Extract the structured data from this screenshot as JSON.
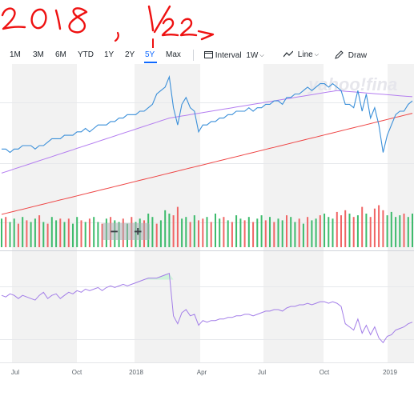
{
  "annotation": {
    "text_year": "2018,",
    "text_date": "1/22",
    "color": "#ee1111"
  },
  "toolbar": {
    "ranges": [
      "1M",
      "3M",
      "6M",
      "YTD",
      "1Y",
      "2Y",
      "5Y",
      "Max"
    ],
    "selected_range": "5Y",
    "interval_label": "Interval",
    "interval_value": "1W",
    "line_label": "Line",
    "draw_label": "Draw",
    "accent_color": "#0f69ff"
  },
  "watermark": "yahoo!fina",
  "zoom": {
    "minus": "−",
    "plus": "+"
  },
  "chart_data": {
    "type": "line",
    "x_tick_labels": [
      "Jul",
      "Oct",
      "2018",
      "Apr",
      "Jul",
      "Oct",
      "2019"
    ],
    "price_series": {
      "color": "#3a8fd9",
      "values": [
        79,
        79,
        78,
        79,
        79,
        80,
        80,
        80,
        79,
        80,
        80,
        81,
        82,
        82,
        82,
        83,
        83,
        83,
        84,
        84,
        85,
        84,
        85,
        86,
        86,
        86,
        87,
        87,
        88,
        88,
        89,
        89,
        89,
        90,
        90,
        91,
        92,
        95,
        96,
        97,
        100,
        91,
        86,
        92,
        94,
        91,
        90,
        84,
        86,
        86,
        87,
        87,
        88,
        88,
        89,
        89,
        90,
        90,
        90,
        91,
        90,
        91,
        91,
        92,
        92,
        93,
        93,
        92,
        94,
        94,
        95,
        95,
        96,
        97,
        96,
        97,
        98,
        98,
        97,
        98,
        97,
        96,
        92,
        92,
        91,
        96,
        90,
        95,
        88,
        91,
        86,
        78,
        83,
        86,
        89,
        90,
        90,
        92,
        93
      ]
    },
    "ma_short": {
      "color": "#b47ef0",
      "values": [
        72,
        72.4,
        72.8,
        73.2,
        73.6,
        74,
        74.4,
        74.8,
        75.2,
        75.6,
        76,
        76.4,
        76.8,
        77.2,
        77.6,
        78,
        78.4,
        78.8,
        79.2,
        79.6,
        80,
        80.4,
        80.8,
        81.2,
        81.6,
        82,
        82.4,
        82.8,
        83.2,
        83.6,
        84,
        84.4,
        84.8,
        85.2,
        85.6,
        86,
        86.4,
        86.8,
        87.2,
        87.6,
        88,
        88.2,
        88.4,
        88.6,
        88.8,
        89,
        89.2,
        89.4,
        89.6,
        89.8,
        90,
        90.2,
        90.4,
        90.6,
        90.8,
        91,
        91.2,
        91.4,
        91.6,
        91.8,
        92,
        92.2,
        92.4,
        92.6,
        92.8,
        93,
        93.2,
        93.4,
        93.6,
        93.8,
        94,
        94.2,
        94.4,
        94.6,
        94.8,
        95,
        95.2,
        95.4,
        95.6,
        95.8,
        96,
        95.9,
        95.8,
        95.7,
        95.6,
        95.5,
        95.4,
        95.3,
        95.2,
        95.1,
        95,
        94.9,
        94.8,
        94.7,
        94.6,
        94.5,
        94.4,
        94.3,
        94.2
      ]
    },
    "ma_long": {
      "color": "#ee4444",
      "values": [
        60,
        60.3,
        60.6,
        60.9,
        61.2,
        61.5,
        61.8,
        62.1,
        62.4,
        62.7,
        63,
        63.3,
        63.6,
        63.9,
        64.2,
        64.5,
        64.8,
        65.1,
        65.4,
        65.7,
        66,
        66.3,
        66.6,
        66.9,
        67.2,
        67.5,
        67.8,
        68.1,
        68.4,
        68.7,
        69,
        69.3,
        69.6,
        69.9,
        70.2,
        70.5,
        70.8,
        71.1,
        71.4,
        71.7,
        72,
        72.3,
        72.6,
        72.9,
        73.2,
        73.5,
        73.8,
        74.1,
        74.4,
        74.7,
        75,
        75.3,
        75.6,
        75.9,
        76.2,
        76.5,
        76.8,
        77.1,
        77.4,
        77.7,
        78,
        78.3,
        78.6,
        78.9,
        79.2,
        79.5,
        79.8,
        80.1,
        80.4,
        80.7,
        81,
        81.3,
        81.6,
        81.9,
        82.2,
        82.5,
        82.8,
        83.1,
        83.4,
        83.7,
        84,
        84.3,
        84.6,
        84.9,
        85.2,
        85.5,
        85.8,
        86.1,
        86.4,
        86.7,
        87,
        87.3,
        87.6,
        87.9,
        88.2,
        88.5,
        88.8,
        89.1,
        89.4
      ]
    },
    "volume": {
      "up_color": "#3dbb6c",
      "down_color": "#f06565",
      "values": [
        34,
        36,
        30,
        34,
        28,
        36,
        32,
        30,
        34,
        38,
        30,
        28,
        36,
        32,
        34,
        30,
        34,
        28,
        36,
        32,
        30,
        34,
        36,
        30,
        28,
        34,
        36,
        32,
        30,
        34,
        28,
        36,
        30,
        34,
        32,
        40,
        36,
        28,
        32,
        44,
        40,
        38,
        48,
        34,
        36,
        30,
        38,
        32,
        34,
        36,
        30,
        40,
        34,
        36,
        32,
        30,
        38,
        34,
        32,
        36,
        30,
        34,
        38,
        32,
        36,
        30,
        34,
        32,
        38,
        36,
        30,
        34,
        28,
        36,
        32,
        34,
        38,
        40,
        36,
        34,
        42,
        38,
        44,
        40,
        36,
        38,
        48,
        40,
        36,
        46,
        50,
        44,
        38,
        42,
        36,
        38,
        40,
        36,
        40
      ],
      "directions": [
        1,
        0,
        1,
        1,
        0,
        1,
        0,
        1,
        1,
        0,
        1,
        0,
        1,
        1,
        0,
        1,
        0,
        1,
        1,
        0,
        1,
        0,
        1,
        1,
        0,
        1,
        0,
        1,
        1,
        0,
        1,
        0,
        1,
        1,
        0,
        1,
        1,
        0,
        1,
        1,
        1,
        0,
        0,
        1,
        1,
        0,
        1,
        0,
        0,
        1,
        0,
        1,
        1,
        0,
        1,
        0,
        1,
        1,
        0,
        1,
        0,
        1,
        1,
        0,
        1,
        0,
        1,
        1,
        0,
        1,
        1,
        0,
        1,
        0,
        1,
        1,
        0,
        1,
        1,
        1,
        0,
        0,
        0,
        1,
        0,
        1,
        0,
        1,
        0,
        0,
        0,
        0,
        1,
        1,
        1,
        1,
        0,
        1,
        1
      ]
    },
    "indicator": {
      "color": "#a37ee8",
      "fill_color": "#c9f3d6",
      "overbought_level": 70,
      "ylim": [
        20,
        85
      ],
      "values": [
        60,
        59,
        61,
        60,
        58,
        60,
        59,
        58,
        57,
        60,
        62,
        58,
        60,
        61,
        58,
        60,
        62,
        61,
        63,
        62,
        64,
        63,
        64,
        65,
        63,
        65,
        66,
        65,
        66,
        67,
        66,
        67,
        68,
        69,
        70,
        71,
        71,
        71,
        72,
        73,
        74,
        47,
        42,
        49,
        51,
        47,
        48,
        41,
        44,
        43,
        44,
        44,
        45,
        45,
        46,
        46,
        47,
        47,
        48,
        48,
        47,
        48,
        49,
        50,
        50,
        51,
        51,
        50,
        52,
        53,
        53,
        54,
        54,
        55,
        54,
        55,
        56,
        56,
        55,
        56,
        55,
        53,
        42,
        40,
        38,
        45,
        36,
        41,
        35,
        40,
        33,
        30,
        34,
        35,
        38,
        39,
        40,
        42,
        43
      ]
    }
  }
}
